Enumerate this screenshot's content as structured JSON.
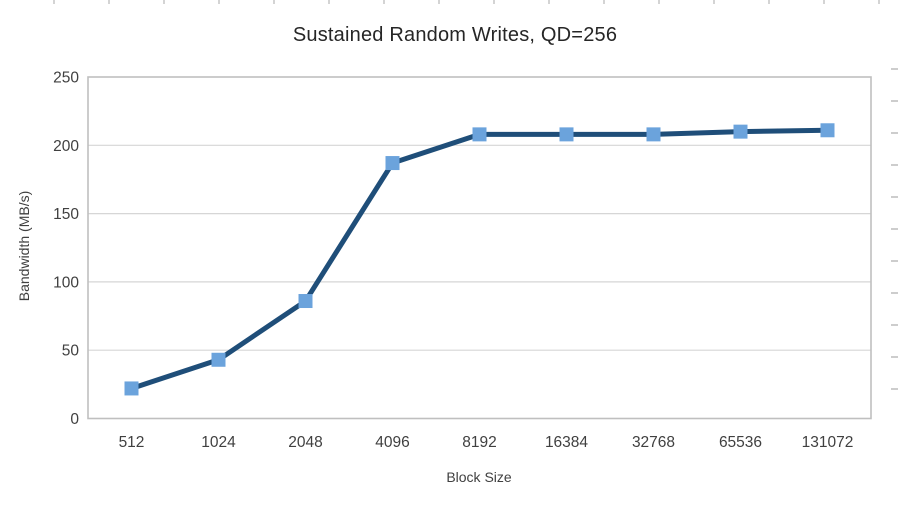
{
  "chart_data": {
    "type": "line",
    "title": "Sustained Random Writes, QD=256",
    "xlabel": "Block Size",
    "ylabel": "Bandwidth (MB/s)",
    "categories": [
      "512",
      "1024",
      "2048",
      "4096",
      "8192",
      "16384",
      "32768",
      "65536",
      "131072"
    ],
    "series": [
      {
        "name": "Bandwidth",
        "values": [
          22,
          43,
          86,
          187,
          208,
          208,
          208,
          210,
          211
        ]
      }
    ],
    "ylim": [
      0,
      250
    ],
    "ytick_interval": 50,
    "yticks": [
      "0",
      "50",
      "100",
      "150",
      "200",
      "250"
    ],
    "grid": "horizontal gridlines every 50",
    "legend": "none",
    "colors": {
      "line": "#1F4E79",
      "marker": "#6BA3DC",
      "gridline": "#D6D6D6",
      "plot_border": "#BFBFBF",
      "tick_text": "#404040",
      "title_text": "#262626"
    }
  }
}
